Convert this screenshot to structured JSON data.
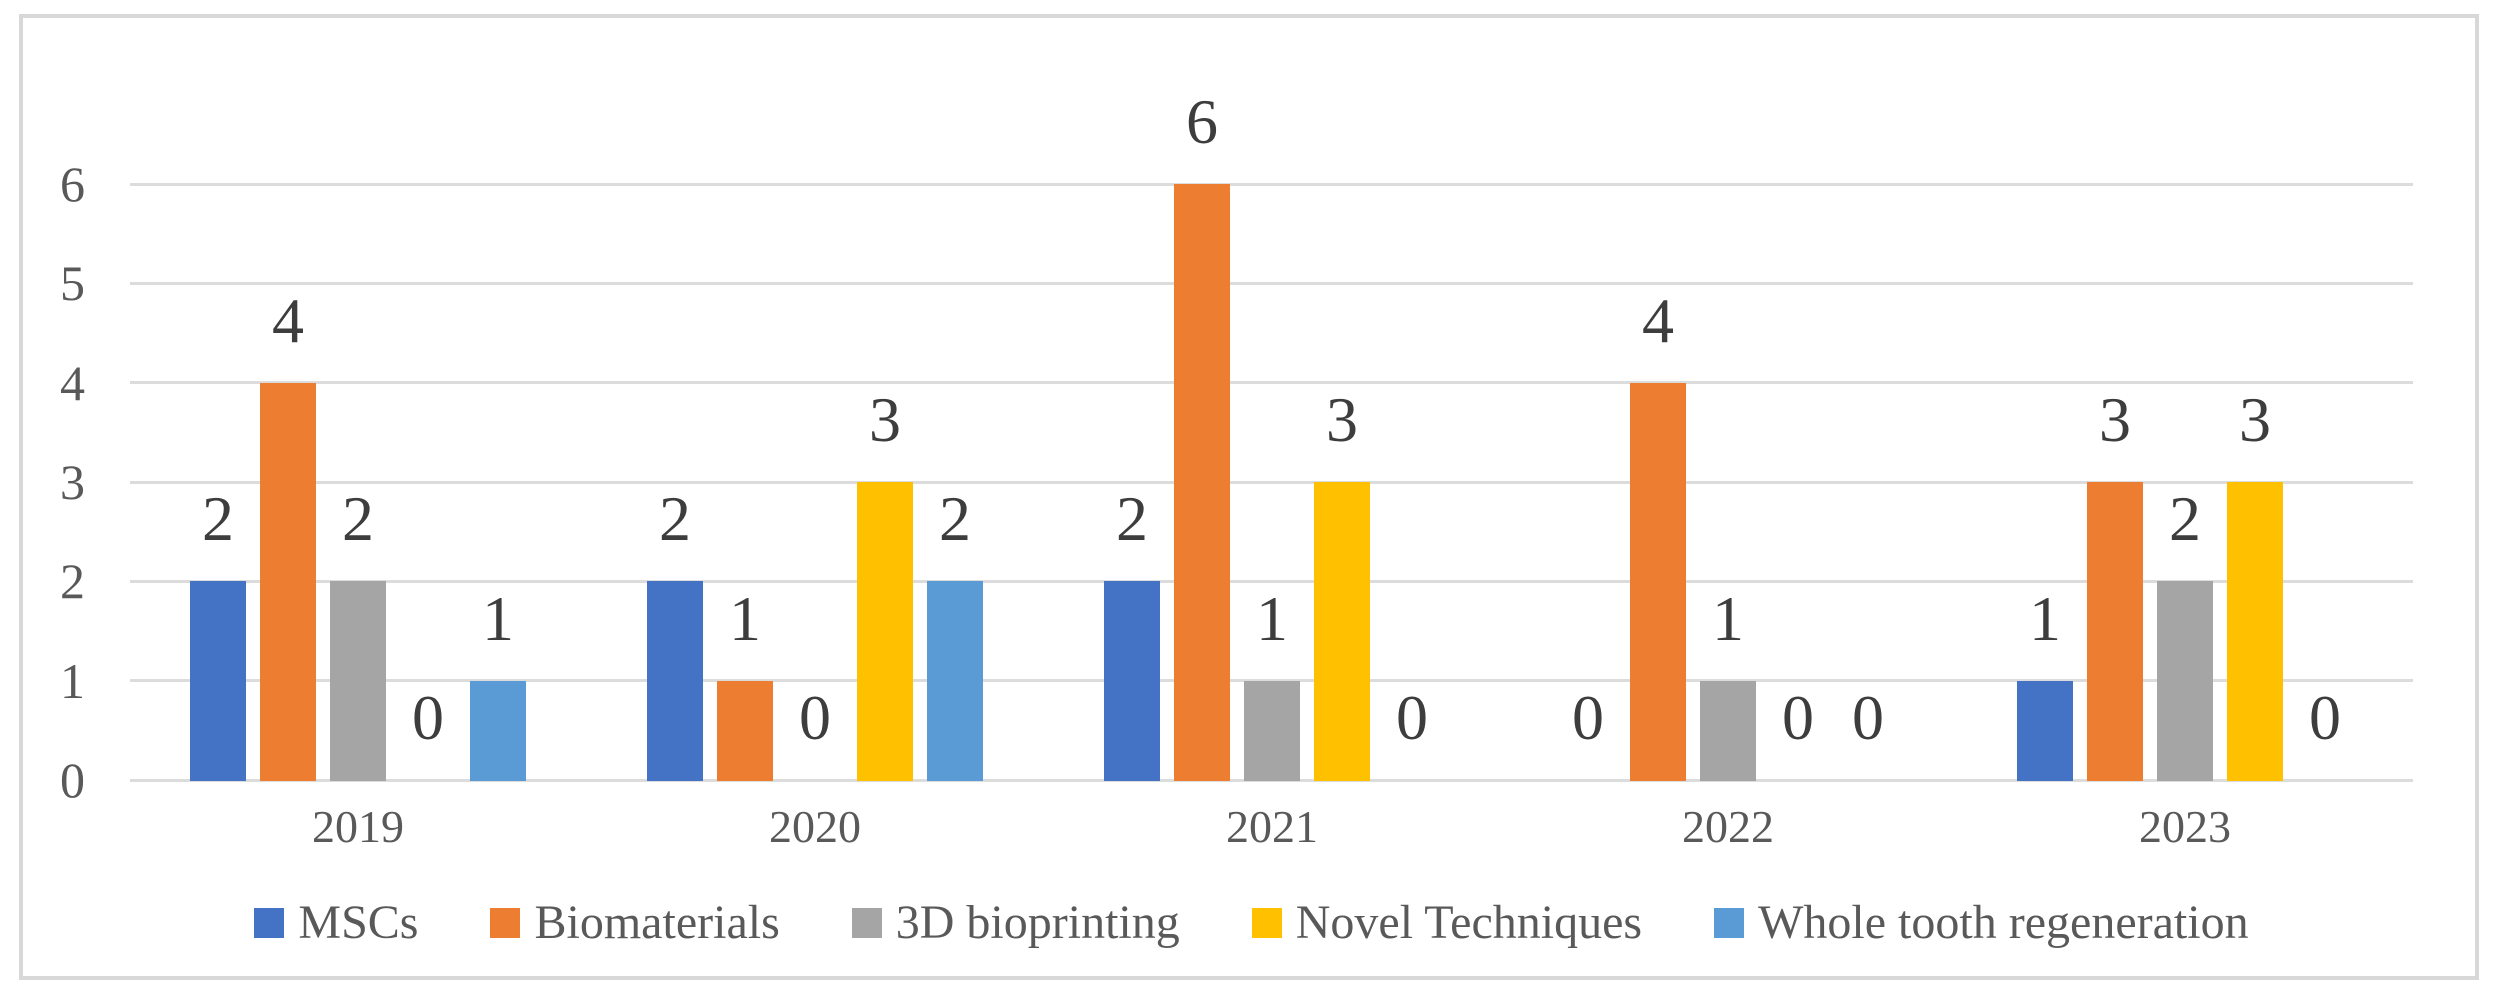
{
  "chart_data": {
    "type": "bar",
    "title": "",
    "categories": [
      "2019",
      "2020",
      "2021",
      "2022",
      "2023"
    ],
    "series": [
      {
        "name": "MSCs",
        "color": "#4472C4",
        "values": [
          2,
          2,
          2,
          0,
          1
        ]
      },
      {
        "name": "Biomaterials",
        "color": "#ED7D31",
        "values": [
          4,
          1,
          6,
          4,
          3
        ]
      },
      {
        "name": "3D bioprinting",
        "color": "#A5A5A5",
        "values": [
          2,
          0,
          1,
          1,
          2
        ]
      },
      {
        "name": "Novel Techniques",
        "color": "#FFC000",
        "values": [
          0,
          3,
          3,
          0,
          3
        ]
      },
      {
        "name": "Whole tooth regeneration",
        "color": "#5B9BD5",
        "values": [
          1,
          2,
          0,
          0,
          0
        ]
      }
    ],
    "y_ticks": [
      0,
      1,
      2,
      3,
      4,
      5,
      6
    ],
    "ylim": [
      0,
      6
    ],
    "grid": true,
    "data_labels": true,
    "legend_position": "bottom",
    "axis_text_color": "#595959",
    "data_label_color": "#3D3D3D",
    "gridline_color": "#DCDCDC",
    "frame_color": "#D8D8D8",
    "background_color": "#FFFFFF"
  }
}
